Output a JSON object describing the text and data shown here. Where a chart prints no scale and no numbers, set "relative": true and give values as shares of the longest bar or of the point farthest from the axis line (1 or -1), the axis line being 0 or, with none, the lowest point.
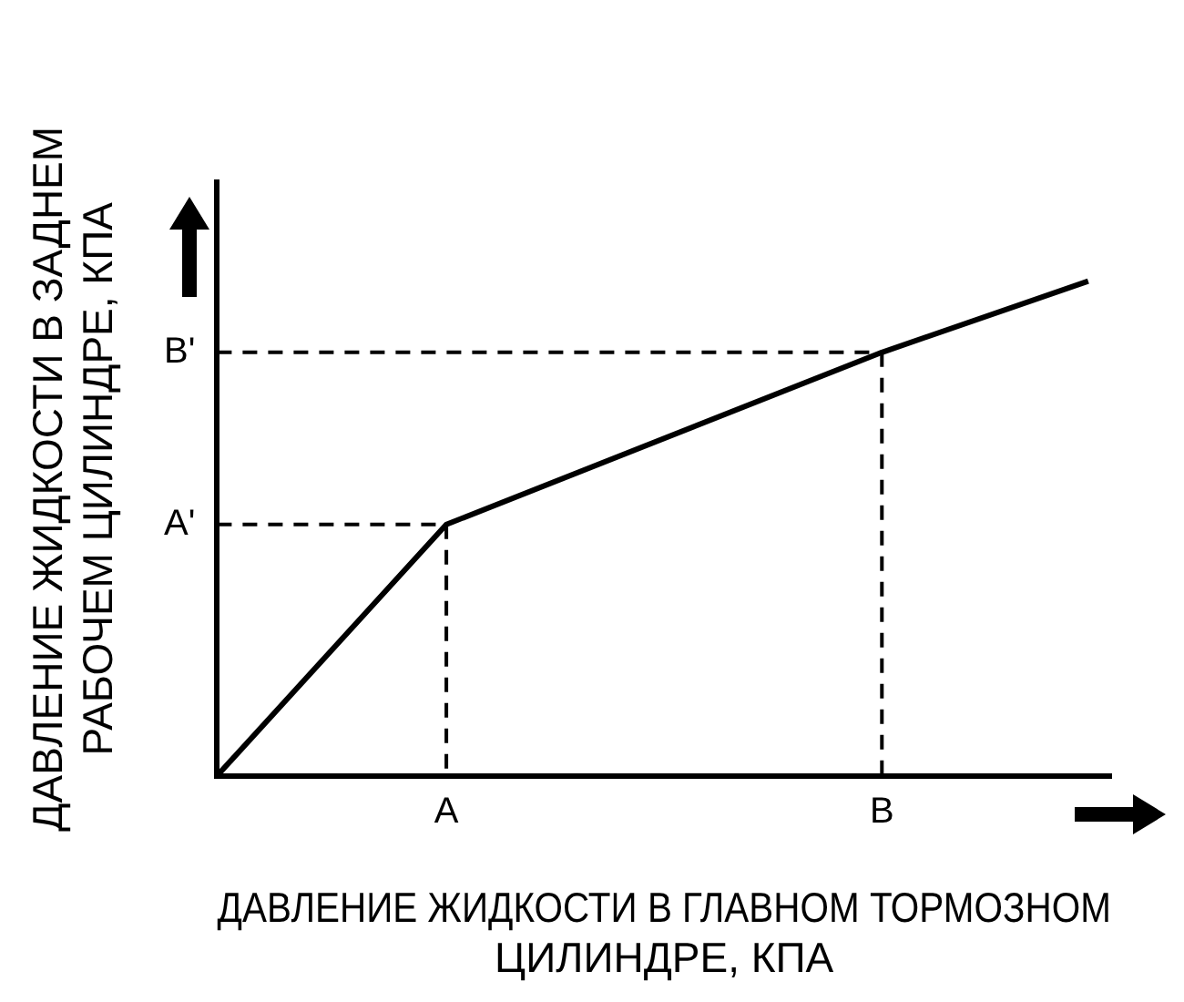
{
  "chart_data": {
    "type": "line",
    "relative": true,
    "xlabel": "ДАВЛЕНИЕ ЖИДКОСТИ В ГЛАВНОМ ТОРМОЗНОМ ЦИЛИНДРЕ, КПА",
    "ylabel": "ДАВЛЕНИЕ ЖИДКОСТИ В ЗАДНЕМ РАБОЧЕМ ЦИЛИНДРЕ, КПА",
    "grid": false,
    "legend": false,
    "marker": "none",
    "line_style": "solid",
    "categories": [
      null,
      null,
      null,
      null,
      null,
      null,
      null,
      null,
      null,
      null,
      "A",
      null,
      null,
      null,
      null,
      null,
      null,
      null,
      null,
      null,
      null,
      null,
      null,
      null,
      null,
      null,
      null,
      null,
      null,
      "B",
      null,
      null,
      null,
      null,
      null,
      null,
      null,
      null,
      null,
      null
    ],
    "series": [
      {
        "color": "#000000",
        "values": [
          0,
          null,
          null,
          null,
          null,
          null,
          null,
          null,
          null,
          null,
          0.508,
          null,
          null,
          null,
          null,
          null,
          null,
          null,
          null,
          null,
          null,
          null,
          null,
          null,
          null,
          null,
          null,
          null,
          null,
          0.856,
          null,
          null,
          null,
          null,
          null,
          null,
          null,
          null,
          1,
          null
        ]
      },
      {
        "name": "A'",
        "color": "#000000",
        "line_style": "dashed",
        "values": [
          0.508,
          null,
          null,
          null,
          null,
          null,
          null,
          null,
          null,
          null,
          0.508,
          null,
          null,
          null,
          null,
          null,
          null,
          null,
          null,
          null,
          null,
          null,
          null,
          null,
          null,
          null,
          null,
          null,
          null,
          null,
          null,
          null,
          null,
          null,
          null,
          null,
          null,
          null,
          null,
          null
        ]
      },
      {
        "color": "#000000",
        "line_style": "dashed",
        "x": [
          "A",
          "A"
        ],
        "values": [
          0.508,
          0
        ]
      },
      {
        "name": "B'",
        "color": "#000000",
        "line_style": "dashed",
        "values": [
          0.856,
          null,
          null,
          null,
          null,
          null,
          null,
          null,
          null,
          null,
          null,
          null,
          null,
          null,
          null,
          null,
          null,
          null,
          null,
          null,
          null,
          null,
          null,
          null,
          null,
          null,
          null,
          null,
          null,
          0.856,
          null,
          null,
          null,
          null,
          null,
          null,
          null,
          null,
          null,
          null
        ]
      },
      {
        "color": "#000000",
        "line_style": "dashed",
        "x": [
          "B",
          "B"
        ],
        "values": [
          0.856,
          0
        ]
      }
    ]
  }
}
